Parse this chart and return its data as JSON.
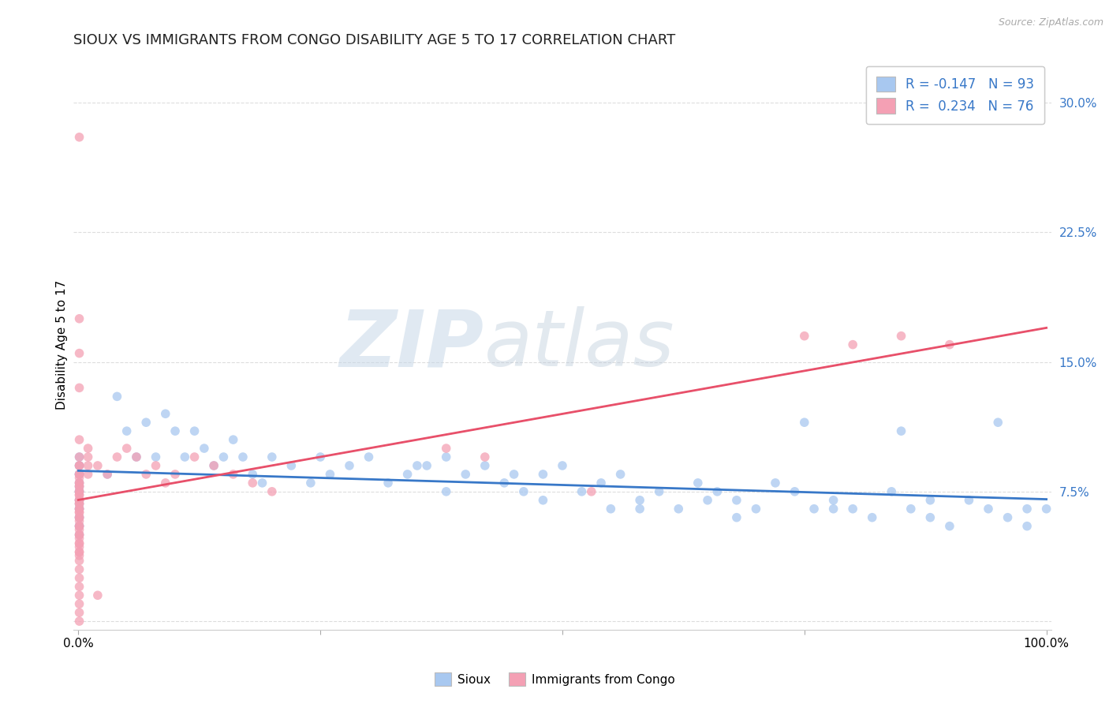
{
  "title": "SIOUX VS IMMIGRANTS FROM CONGO DISABILITY AGE 5 TO 17 CORRELATION CHART",
  "source": "Source: ZipAtlas.com",
  "ylabel": "Disability Age 5 to 17",
  "xlabel": "",
  "xlim": [
    -0.005,
    1.005
  ],
  "ylim": [
    -0.005,
    0.325
  ],
  "yticks": [
    0.0,
    0.075,
    0.15,
    0.225,
    0.3
  ],
  "yticklabels": [
    "",
    "7.5%",
    "15.0%",
    "22.5%",
    "30.0%"
  ],
  "xticks": [
    0.0,
    0.25,
    0.5,
    0.75,
    1.0
  ],
  "xticklabels": [
    "0.0%",
    "",
    "",
    "",
    "100.0%"
  ],
  "R_sioux": -0.147,
  "N_sioux": 93,
  "R_congo": 0.234,
  "N_congo": 76,
  "sioux_color": "#a8c8f0",
  "congo_color": "#f4a0b4",
  "sioux_line_color": "#3878c8",
  "congo_line_color": "#e8506a",
  "diagonal_color": "#e8a0b0",
  "background_color": "#ffffff",
  "grid_color": "#dddddd",
  "watermark_left": "ZIP",
  "watermark_right": "atlas",
  "title_fontsize": 13,
  "label_fontsize": 11,
  "tick_fontsize": 11,
  "sioux_x": [
    0.001,
    0.001,
    0.001,
    0.001,
    0.001,
    0.001,
    0.001,
    0.001,
    0.001,
    0.001,
    0.001,
    0.001,
    0.001,
    0.001,
    0.001,
    0.001,
    0.001,
    0.001,
    0.001,
    0.001,
    0.03,
    0.04,
    0.05,
    0.06,
    0.07,
    0.08,
    0.09,
    0.1,
    0.11,
    0.12,
    0.13,
    0.14,
    0.15,
    0.16,
    0.17,
    0.18,
    0.19,
    0.2,
    0.22,
    0.24,
    0.26,
    0.28,
    0.3,
    0.32,
    0.34,
    0.36,
    0.38,
    0.4,
    0.42,
    0.44,
    0.46,
    0.48,
    0.5,
    0.52,
    0.54,
    0.56,
    0.58,
    0.6,
    0.62,
    0.64,
    0.66,
    0.68,
    0.7,
    0.72,
    0.74,
    0.76,
    0.78,
    0.8,
    0.82,
    0.84,
    0.86,
    0.88,
    0.9,
    0.92,
    0.94,
    0.96,
    0.98,
    1.0,
    0.55,
    0.65,
    0.75,
    0.85,
    0.95,
    0.38,
    0.48,
    0.58,
    0.68,
    0.78,
    0.88,
    0.98,
    0.45,
    0.35,
    0.25
  ],
  "sioux_y": [
    0.085,
    0.075,
    0.07,
    0.065,
    0.06,
    0.055,
    0.08,
    0.09,
    0.095,
    0.085,
    0.075,
    0.07,
    0.065,
    0.06,
    0.055,
    0.05,
    0.085,
    0.09,
    0.078,
    0.068,
    0.085,
    0.13,
    0.11,
    0.095,
    0.115,
    0.095,
    0.12,
    0.11,
    0.095,
    0.11,
    0.1,
    0.09,
    0.095,
    0.105,
    0.095,
    0.085,
    0.08,
    0.095,
    0.09,
    0.08,
    0.085,
    0.09,
    0.095,
    0.08,
    0.085,
    0.09,
    0.095,
    0.085,
    0.09,
    0.08,
    0.075,
    0.085,
    0.09,
    0.075,
    0.08,
    0.085,
    0.07,
    0.075,
    0.065,
    0.08,
    0.075,
    0.07,
    0.065,
    0.08,
    0.075,
    0.065,
    0.07,
    0.065,
    0.06,
    0.075,
    0.065,
    0.06,
    0.055,
    0.07,
    0.065,
    0.06,
    0.055,
    0.065,
    0.065,
    0.07,
    0.115,
    0.11,
    0.115,
    0.075,
    0.07,
    0.065,
    0.06,
    0.065,
    0.07,
    0.065,
    0.085,
    0.09,
    0.095
  ],
  "congo_x": [
    0.001,
    0.001,
    0.001,
    0.001,
    0.001,
    0.001,
    0.001,
    0.001,
    0.001,
    0.001,
    0.001,
    0.001,
    0.001,
    0.001,
    0.001,
    0.001,
    0.001,
    0.001,
    0.001,
    0.001,
    0.001,
    0.001,
    0.001,
    0.001,
    0.001,
    0.001,
    0.001,
    0.001,
    0.001,
    0.001,
    0.001,
    0.001,
    0.001,
    0.001,
    0.001,
    0.001,
    0.001,
    0.001,
    0.001,
    0.001,
    0.001,
    0.001,
    0.001,
    0.001,
    0.001,
    0.001,
    0.001,
    0.001,
    0.001,
    0.001,
    0.02,
    0.03,
    0.04,
    0.05,
    0.06,
    0.07,
    0.08,
    0.09,
    0.1,
    0.12,
    0.14,
    0.16,
    0.18,
    0.2,
    0.53,
    0.75,
    0.8,
    0.85,
    0.9,
    0.38,
    0.42,
    0.01,
    0.01,
    0.01,
    0.01,
    0.02
  ],
  "congo_y": [
    0.28,
    0.175,
    0.155,
    0.135,
    0.105,
    0.095,
    0.09,
    0.085,
    0.08,
    0.075,
    0.07,
    0.065,
    0.06,
    0.055,
    0.05,
    0.045,
    0.04,
    0.035,
    0.03,
    0.025,
    0.02,
    0.015,
    0.01,
    0.005,
    0.0,
    0.075,
    0.07,
    0.065,
    0.06,
    0.055,
    0.05,
    0.045,
    0.04,
    0.08,
    0.085,
    0.09,
    0.078,
    0.073,
    0.068,
    0.063,
    0.058,
    0.053,
    0.048,
    0.043,
    0.038,
    0.083,
    0.078,
    0.073,
    0.068,
    0.063,
    0.09,
    0.085,
    0.095,
    0.1,
    0.095,
    0.085,
    0.09,
    0.08,
    0.085,
    0.095,
    0.09,
    0.085,
    0.08,
    0.075,
    0.075,
    0.165,
    0.16,
    0.165,
    0.16,
    0.1,
    0.095,
    0.1,
    0.095,
    0.09,
    0.085,
    0.015
  ]
}
